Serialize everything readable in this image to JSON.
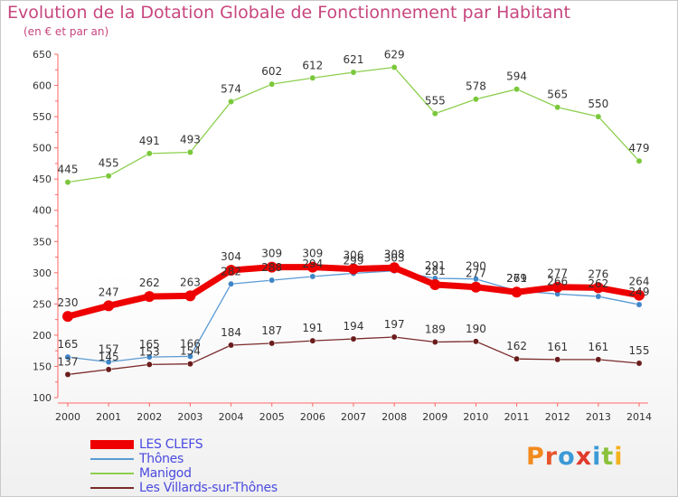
{
  "title": "Evolution de la Dotation Globale de Fonctionnement par Habitant",
  "subtitle": "(en € et par an)",
  "logo": "Proxiti",
  "chart_data": {
    "type": "line",
    "x": [
      "2000",
      "2001",
      "2002",
      "2003",
      "2004",
      "2005",
      "2006",
      "2007",
      "2008",
      "2009",
      "2010",
      "2011",
      "2012",
      "2013",
      "2014"
    ],
    "ylim": [
      100,
      650
    ],
    "yticks": [
      100,
      150,
      200,
      250,
      300,
      350,
      400,
      450,
      500,
      550,
      600,
      650
    ],
    "grid": false,
    "legend_position": "bottom-left",
    "series": [
      {
        "name": "Manigod",
        "color": "#8ccf4e",
        "dot": "#7ac83a",
        "width": 1.3,
        "radius": 3.2,
        "values": [
          445,
          455,
          491,
          493,
          574,
          602,
          612,
          621,
          629,
          555,
          578,
          594,
          565,
          550,
          479
        ]
      },
      {
        "name": "Thônes",
        "color": "#5a9ad4",
        "dot": "#3f86c8",
        "width": 1.3,
        "radius": 3.2,
        "values": [
          165,
          157,
          165,
          166,
          282,
          288,
          294,
          299,
          303,
          291,
          290,
          271,
          266,
          262,
          249
        ]
      },
      {
        "name": "Les Villards-sur-Thônes",
        "color": "#7a2a2a",
        "dot": "#6a1c1c",
        "width": 1.3,
        "radius": 3.2,
        "values": [
          137,
          145,
          153,
          154,
          184,
          187,
          191,
          194,
          197,
          189,
          190,
          162,
          161,
          161,
          155
        ]
      },
      {
        "name": "LES CLEFS",
        "color": "#ee0000",
        "dot": "#ee0000",
        "width": 7,
        "radius": 6,
        "values": [
          230,
          247,
          262,
          263,
          304,
          309,
          309,
          306,
          308,
          281,
          277,
          269,
          277,
          276,
          264
        ]
      }
    ],
    "data_labels": {
      "Manigod": [
        "445",
        "455",
        "491",
        "493",
        "574",
        "602",
        "612",
        "621",
        "629",
        "555",
        "578",
        "594",
        "565",
        "550",
        "479"
      ],
      "Thônes": [
        "165",
        "157",
        "165",
        "166",
        "282",
        "288",
        "294",
        "299",
        "303",
        "291",
        "290",
        "271",
        "266",
        "262",
        "249"
      ],
      "Les Villards-sur-Thônes": [
        "137",
        "145",
        "153",
        "154",
        "184",
        "187",
        "191",
        "194",
        "197",
        "189",
        "190",
        "162",
        "161",
        "161",
        "155"
      ],
      "LES CLEFS": [
        "230",
        "247",
        "262",
        "263",
        "304",
        "309",
        "309",
        "306",
        "308",
        "281",
        "277",
        "269",
        "277",
        "276",
        "264"
      ]
    }
  },
  "legend": [
    {
      "label": "LES CLEFS",
      "color": "#ee0000",
      "thick": true
    },
    {
      "label": "Thônes",
      "color": "#5a9ad4",
      "thick": false
    },
    {
      "label": "Manigod",
      "color": "#8ccf4e",
      "thick": false
    },
    {
      "label": "Les Villards-sur-Thônes",
      "color": "#7a2a2a",
      "thick": false
    }
  ]
}
